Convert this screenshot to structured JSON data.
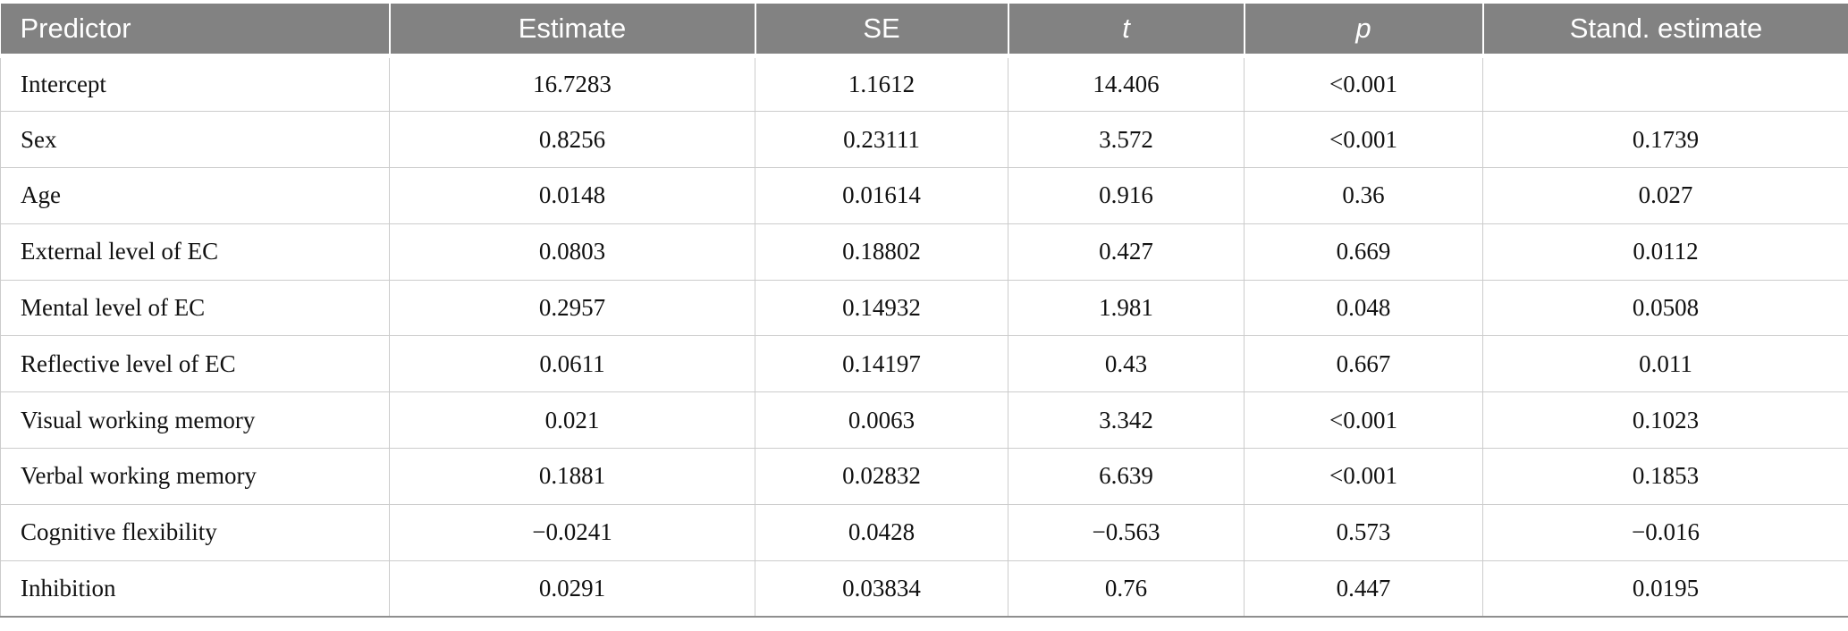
{
  "table": {
    "columns": [
      {
        "label": "Predictor",
        "italic": false
      },
      {
        "label": "Estimate",
        "italic": false
      },
      {
        "label": "SE",
        "italic": false
      },
      {
        "label": "t",
        "italic": true
      },
      {
        "label": "p",
        "italic": true
      },
      {
        "label": "Stand. estimate",
        "italic": false
      }
    ],
    "rows": [
      [
        "Intercept",
        "16.7283",
        "1.1612",
        "14.406",
        "<0.001",
        ""
      ],
      [
        "Sex",
        "0.8256",
        "0.23111",
        "3.572",
        "<0.001",
        "0.1739"
      ],
      [
        "Age",
        "0.0148",
        "0.01614",
        "0.916",
        "0.36",
        "0.027"
      ],
      [
        "External level of EC",
        "0.0803",
        "0.18802",
        "0.427",
        "0.669",
        "0.0112"
      ],
      [
        "Mental level of EC",
        "0.2957",
        "0.14932",
        "1.981",
        "0.048",
        "0.0508"
      ],
      [
        "Reflective level of EC",
        "0.0611",
        "0.14197",
        "0.43",
        "0.667",
        "0.011"
      ],
      [
        "Visual working memory",
        "0.021",
        "0.0063",
        "3.342",
        "<0.001",
        "0.1023"
      ],
      [
        "Verbal working memory",
        "0.1881",
        "0.02832",
        "6.639",
        "<0.001",
        "0.1853"
      ],
      [
        "Cognitive flexibility",
        "−0.0241",
        "0.0428",
        "−0.563",
        "0.573",
        "−0.016"
      ],
      [
        "Inhibition",
        "0.0291",
        "0.03834",
        "0.76",
        "0.447",
        "0.0195"
      ]
    ],
    "colors": {
      "header_bg": "#828282",
      "header_text": "#ffffff",
      "grid_line": "#cccccc",
      "bottom_border": "#8f8f8f",
      "body_text": "#111111"
    }
  }
}
